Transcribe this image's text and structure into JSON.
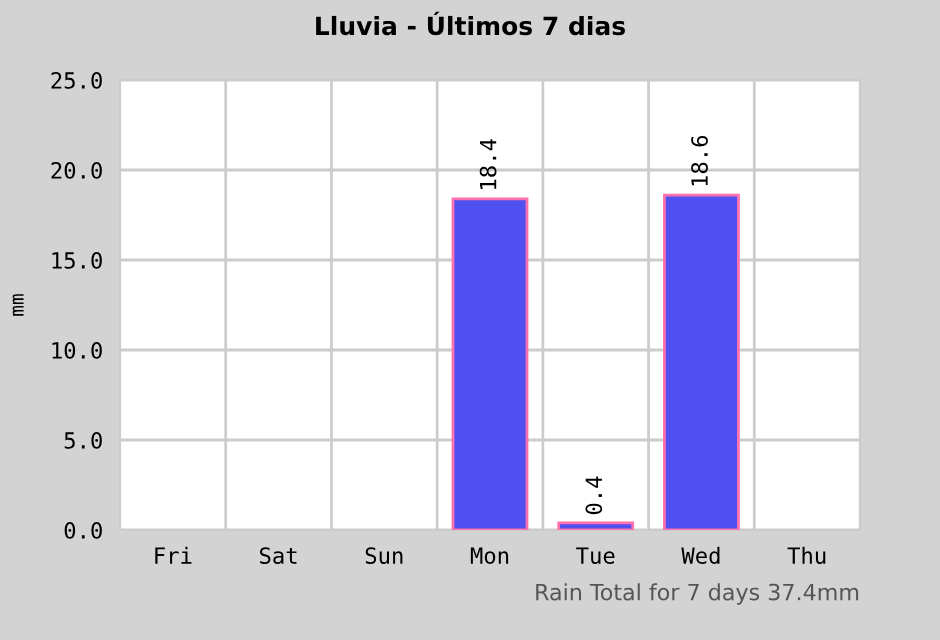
{
  "chart_data": {
    "type": "bar",
    "title": "Lluvia - Últimos 7 dias",
    "ylabel": "mm",
    "categories": [
      "Fri",
      "Sat",
      "Sun",
      "Mon",
      "Tue",
      "Wed",
      "Thu"
    ],
    "values": [
      0,
      0,
      0,
      18.4,
      0.4,
      18.6,
      0
    ],
    "value_labels": [
      null,
      null,
      null,
      "18.4",
      "0.4",
      "18.6",
      null
    ],
    "color": "#5050f0",
    "ylim": [
      0,
      25
    ],
    "yticks": [
      {
        "value": 0,
        "label": "0.0"
      },
      {
        "value": 5,
        "label": "5.0"
      },
      {
        "value": 10,
        "label": "10.0"
      },
      {
        "value": 15,
        "label": "15.0"
      },
      {
        "value": 20,
        "label": "20.0"
      },
      {
        "value": 25,
        "label": "25.0"
      }
    ],
    "grid": true,
    "annotations": [
      "Rain Total for 7 days 37.4mm"
    ]
  }
}
